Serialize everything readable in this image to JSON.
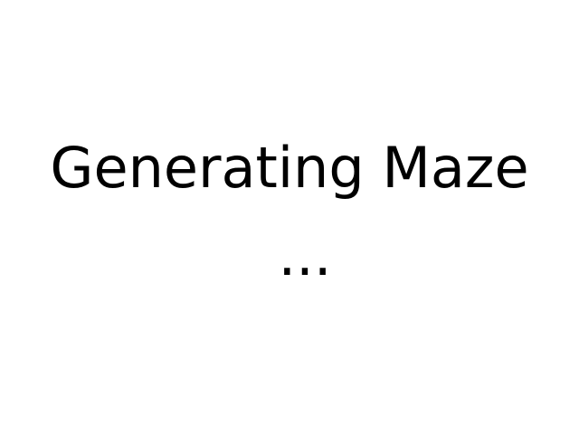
{
  "status": {
    "title": "Generating Maze",
    "ellipsis": "..."
  },
  "colors": {
    "background": "#ffffff",
    "text": "#000000"
  }
}
